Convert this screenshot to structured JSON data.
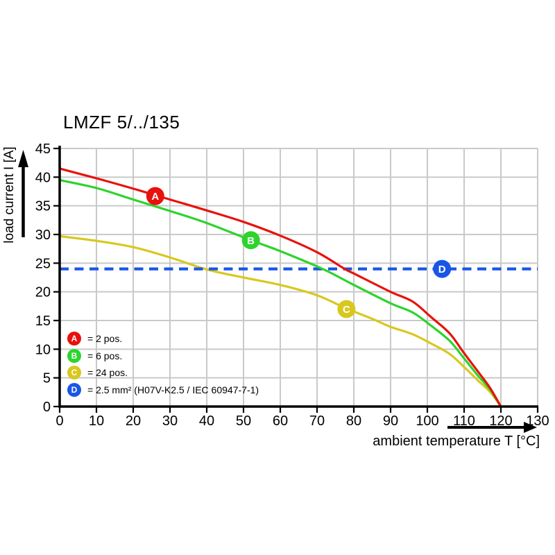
{
  "title": "LMZF 5/../135",
  "chart_data": {
    "type": "line",
    "title": "LMZF 5/../135",
    "xlabel": "ambient temperature T [°C]",
    "ylabel": "load current I [A]",
    "xlim": [
      0,
      130
    ],
    "ylim": [
      0,
      45
    ],
    "xticks": [
      0,
      10,
      20,
      30,
      40,
      50,
      60,
      70,
      80,
      90,
      100,
      110,
      120,
      130
    ],
    "yticks": [
      0,
      5,
      10,
      15,
      20,
      25,
      30,
      35,
      40,
      45
    ],
    "grid": true,
    "grid_color": "#c9c9c9",
    "axis_color": "#000000",
    "legend_position": "lower-left",
    "series": [
      {
        "id": "A",
        "label": "2 pos.",
        "color": "#e8120c",
        "style": "solid",
        "marker": {
          "letter": "A",
          "x": 26,
          "y": 36.7
        },
        "points": [
          [
            0,
            41.5
          ],
          [
            10,
            39.8
          ],
          [
            20,
            38.0
          ],
          [
            30,
            36.1
          ],
          [
            40,
            34.2
          ],
          [
            50,
            32.2
          ],
          [
            60,
            29.8
          ],
          [
            70,
            26.9
          ],
          [
            77.5,
            24
          ],
          [
            80,
            23.2
          ],
          [
            90,
            20.0
          ],
          [
            96,
            18.3
          ],
          [
            101,
            15.6
          ],
          [
            106,
            12.8
          ],
          [
            110,
            9.3
          ],
          [
            114,
            5.9
          ],
          [
            117,
            3.3
          ],
          [
            120,
            0
          ]
        ]
      },
      {
        "id": "B",
        "label": "6 pos.",
        "color": "#2cd42c",
        "style": "solid",
        "marker": {
          "letter": "B",
          "x": 52,
          "y": 29
        },
        "points": [
          [
            0,
            39.5
          ],
          [
            10,
            38.1
          ],
          [
            20,
            36.1
          ],
          [
            30,
            34.1
          ],
          [
            40,
            32.0
          ],
          [
            52,
            29.0
          ],
          [
            60,
            27.1
          ],
          [
            71.5,
            24
          ],
          [
            80,
            21.2
          ],
          [
            90,
            18.0
          ],
          [
            96,
            16.4
          ],
          [
            101,
            14.1
          ],
          [
            106,
            11.5
          ],
          [
            110,
            8.4
          ],
          [
            114,
            5.2
          ],
          [
            117,
            3.0
          ],
          [
            120,
            0
          ]
        ]
      },
      {
        "id": "C",
        "label": "24 pos.",
        "color": "#d8c81e",
        "style": "solid",
        "marker": {
          "letter": "C",
          "x": 78,
          "y": 17
        },
        "points": [
          [
            0,
            29.7
          ],
          [
            10,
            28.9
          ],
          [
            20,
            27.8
          ],
          [
            30,
            26.0
          ],
          [
            40,
            23.9
          ],
          [
            50,
            22.5
          ],
          [
            60,
            21.2
          ],
          [
            70,
            19.4
          ],
          [
            78,
            17.1
          ],
          [
            85,
            15.3
          ],
          [
            90,
            13.9
          ],
          [
            96,
            12.6
          ],
          [
            101,
            11.0
          ],
          [
            106,
            9.2
          ],
          [
            110,
            6.9
          ],
          [
            114,
            4.4
          ],
          [
            117,
            2.6
          ],
          [
            120,
            0
          ]
        ]
      },
      {
        "id": "D",
        "label": "2.5 mm² (H07V-K2.5 / IEC 60947-7-1)",
        "color": "#1a56e6",
        "style": "dashed",
        "marker": {
          "letter": "D",
          "x": 104,
          "y": 24
        },
        "points": [
          [
            0,
            24
          ],
          [
            130,
            24
          ]
        ]
      }
    ],
    "legend": [
      {
        "letter": "A",
        "color": "#e8120c",
        "text": "= 2 pos."
      },
      {
        "letter": "B",
        "color": "#2cd42c",
        "text": "= 6 pos."
      },
      {
        "letter": "C",
        "color": "#d8c81e",
        "text": "= 24 pos."
      },
      {
        "letter": "D",
        "color": "#1a56e6",
        "text": "= 2.5 mm² (H07V-K2.5 / IEC 60947-7-1)"
      }
    ]
  }
}
